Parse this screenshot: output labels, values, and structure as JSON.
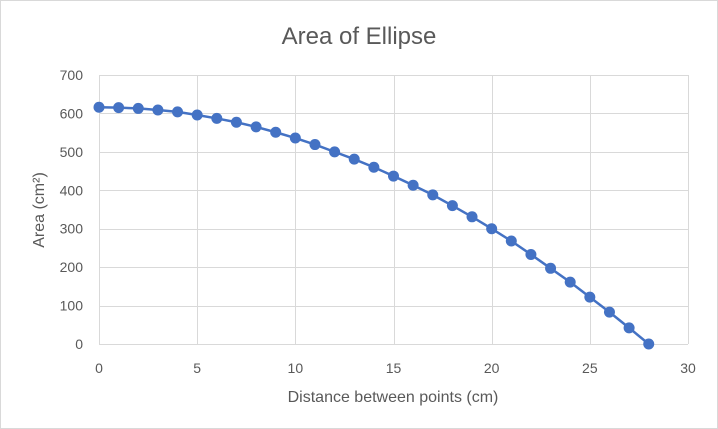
{
  "chart_data": {
    "type": "scatter",
    "title": "Area of Ellipse",
    "xlabel": "Distance between points (cm)",
    "ylabel": "Area (cm²)",
    "xlim": [
      0,
      30
    ],
    "ylim": [
      0,
      700
    ],
    "x_ticks": [
      0,
      5,
      10,
      15,
      20,
      25,
      30
    ],
    "y_ticks": [
      0,
      100,
      200,
      300,
      400,
      500,
      600,
      700
    ],
    "grid": true,
    "legend": "none",
    "line_style": "straight lines with markers",
    "color": "#4472c4",
    "series": [
      {
        "x": [
          0,
          1,
          2,
          3,
          4,
          5,
          6,
          7,
          8,
          9,
          10,
          11,
          12,
          13,
          14,
          15,
          16,
          17,
          18,
          19,
          20,
          21,
          22,
          23,
          24,
          25,
          26,
          27,
          28
        ],
        "y": [
          616,
          615,
          613,
          609,
          604,
          596,
          587,
          577,
          565,
          551,
          536,
          519,
          500,
          481,
          460,
          437,
          413,
          388,
          360,
          331,
          300,
          268,
          233,
          197,
          161,
          122,
          83,
          42,
          0
        ]
      }
    ]
  }
}
